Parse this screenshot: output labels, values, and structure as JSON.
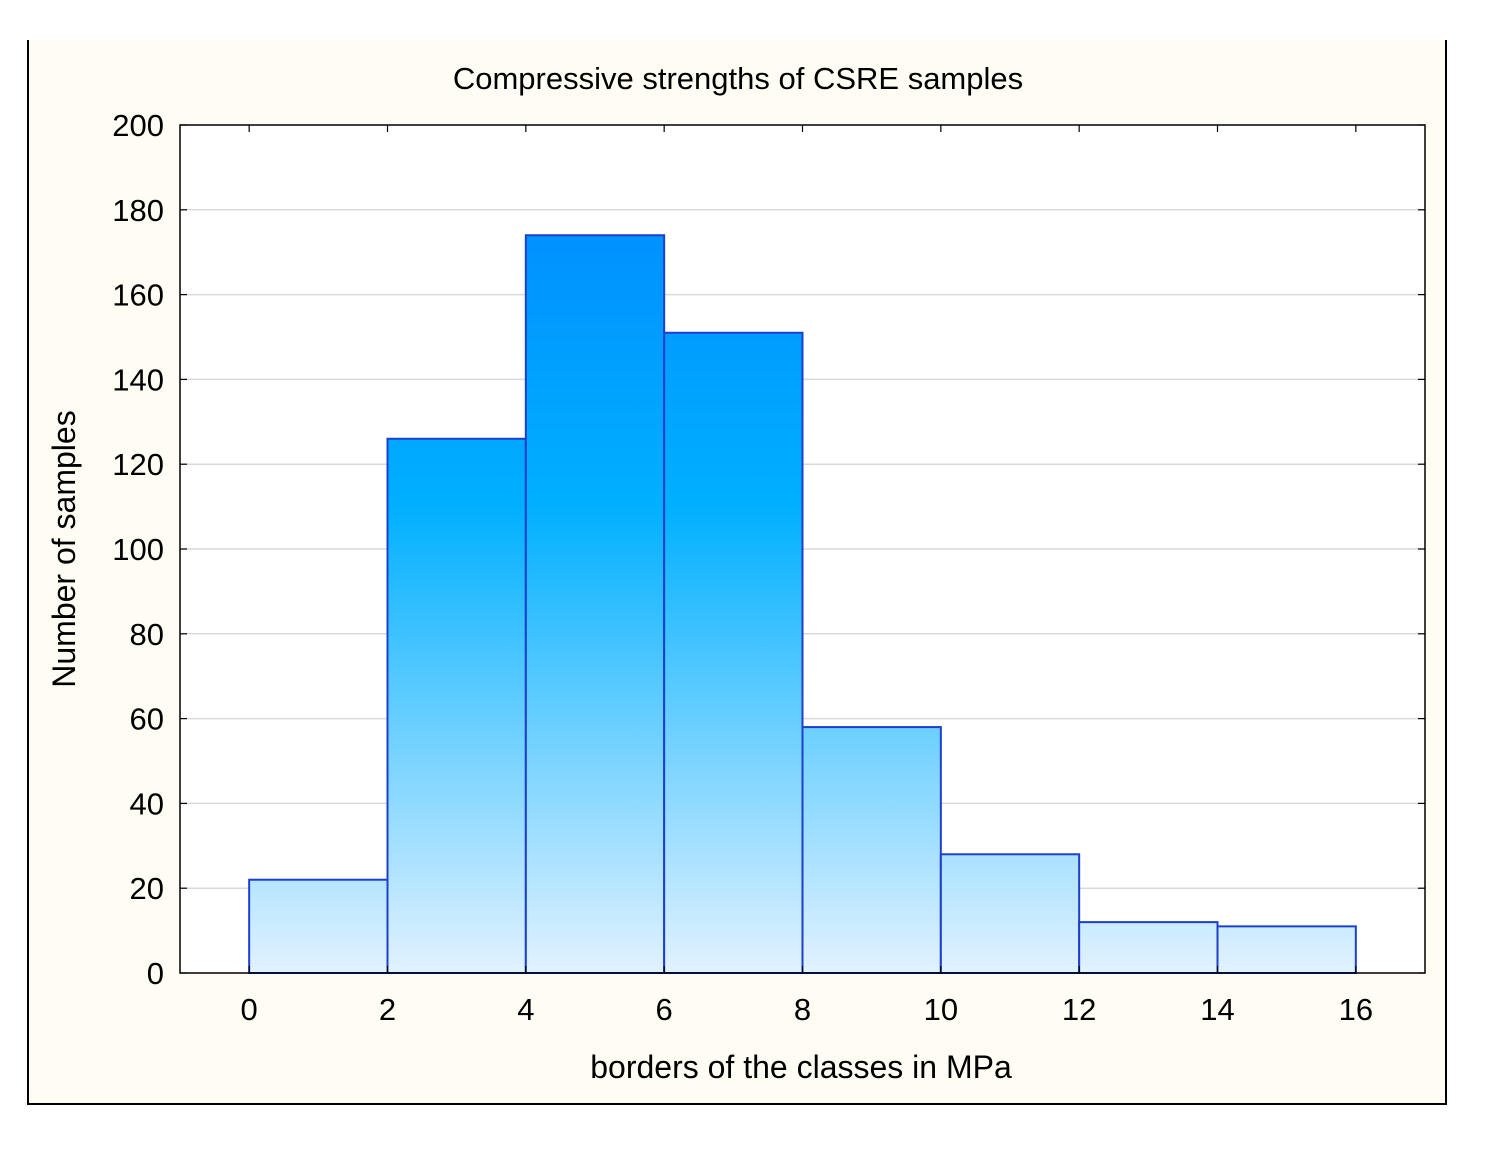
{
  "chart_data": {
    "type": "bar",
    "title": "Compressive strengths of CSRE samples",
    "xlabel": "borders of the classes in MPa",
    "ylabel": "Number of samples",
    "bin_edges": [
      0,
      2,
      4,
      6,
      8,
      10,
      12,
      14,
      16
    ],
    "values": [
      22,
      126,
      174,
      151,
      58,
      28,
      12,
      11
    ],
    "x_ticks": [
      "0",
      "2",
      "4",
      "6",
      "8",
      "10",
      "12",
      "14",
      "16"
    ],
    "y_ticks": [
      "0",
      "20",
      "40",
      "60",
      "80",
      "100",
      "120",
      "140",
      "160",
      "180",
      "200"
    ],
    "xlim": [
      -1,
      17
    ],
    "ylim": [
      0,
      200
    ],
    "grid": true,
    "colors": {
      "bar_top": "#0085ff",
      "bar_mid": "#00b0ff",
      "bar_bottom": "#e2f2ff",
      "bar_edge": "#1d3fd0",
      "background": "#fffcf3",
      "plot_area": "#ffffff",
      "grid": "#d9d9d9"
    }
  }
}
